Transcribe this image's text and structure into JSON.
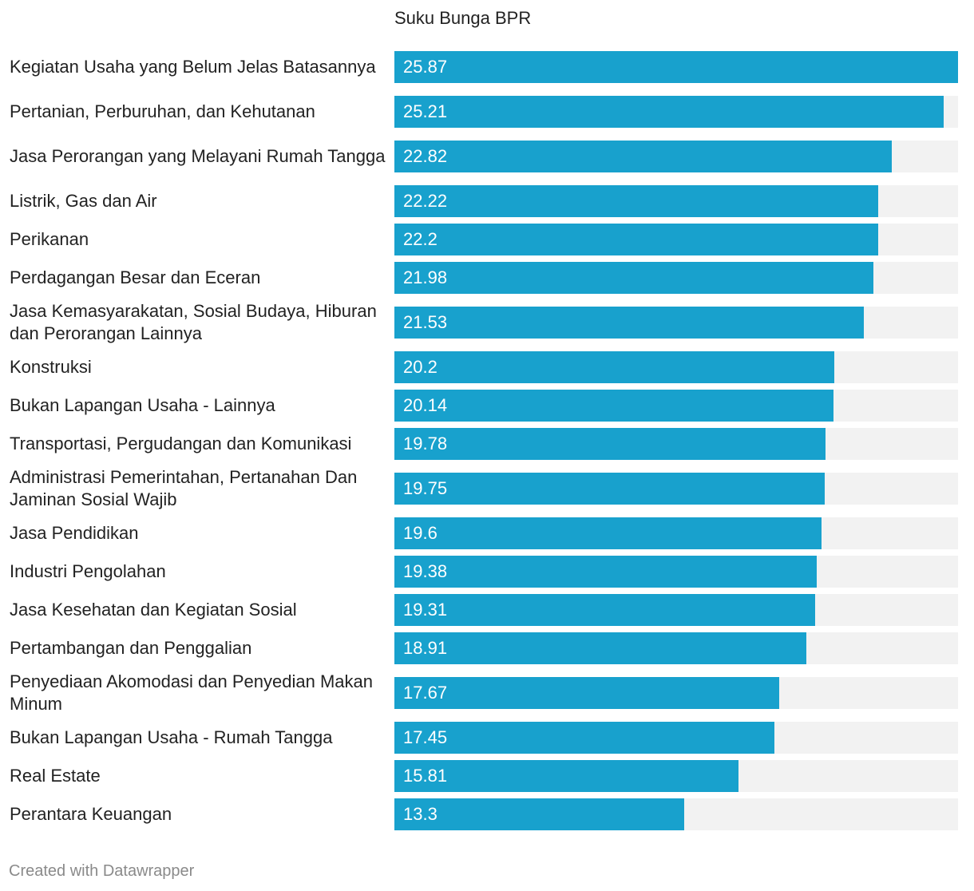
{
  "chart_data": {
    "type": "bar",
    "orientation": "horizontal",
    "title": "",
    "series_label": "Suku Bunga BPR",
    "categories": [
      "Kegiatan Usaha yang Belum Jelas Batasannya",
      "Pertanian, Perburuhan, dan Kehutanan",
      "Jasa Perorangan yang Melayani Rumah Tangga",
      "Listrik, Gas dan Air",
      "Perikanan",
      "Perdagangan Besar dan Eceran",
      "Jasa Kemasyarakatan, Sosial Budaya, Hiburan dan Perorangan Lainnya",
      "Konstruksi",
      "Bukan Lapangan Usaha - Lainnya",
      "Transportasi, Pergudangan dan Komunikasi",
      "Administrasi Pemerintahan, Pertanahan Dan Jaminan Sosial Wajib",
      "Jasa Pendidikan",
      "Industri Pengolahan",
      "Jasa Kesehatan dan Kegiatan Sosial",
      "Pertambangan dan Penggalian",
      "Penyediaan Akomodasi dan Penyedian Makan Minum",
      "Bukan Lapangan Usaha - Rumah Tangga",
      "Real Estate",
      "Perantara Keuangan"
    ],
    "values": [
      25.87,
      25.21,
      22.82,
      22.22,
      22.2,
      21.98,
      21.53,
      20.2,
      20.14,
      19.78,
      19.75,
      19.6,
      19.38,
      19.31,
      18.91,
      17.67,
      17.45,
      15.81,
      13.3
    ],
    "value_labels": [
      "25.87",
      "25.21",
      "22.82",
      "22.22",
      "22.2",
      "21.98",
      "21.53",
      "20.2",
      "20.14",
      "19.78",
      "19.75",
      "19.6",
      "19.38",
      "19.31",
      "18.91",
      "17.67",
      "17.45",
      "15.81",
      "13.3"
    ],
    "xlim": [
      0,
      25.87
    ],
    "bar_color": "#18a1cd",
    "track_color": "#f2f2f2",
    "value_label_color": "#ffffff"
  },
  "footer": {
    "credit": "Created with Datawrapper"
  }
}
